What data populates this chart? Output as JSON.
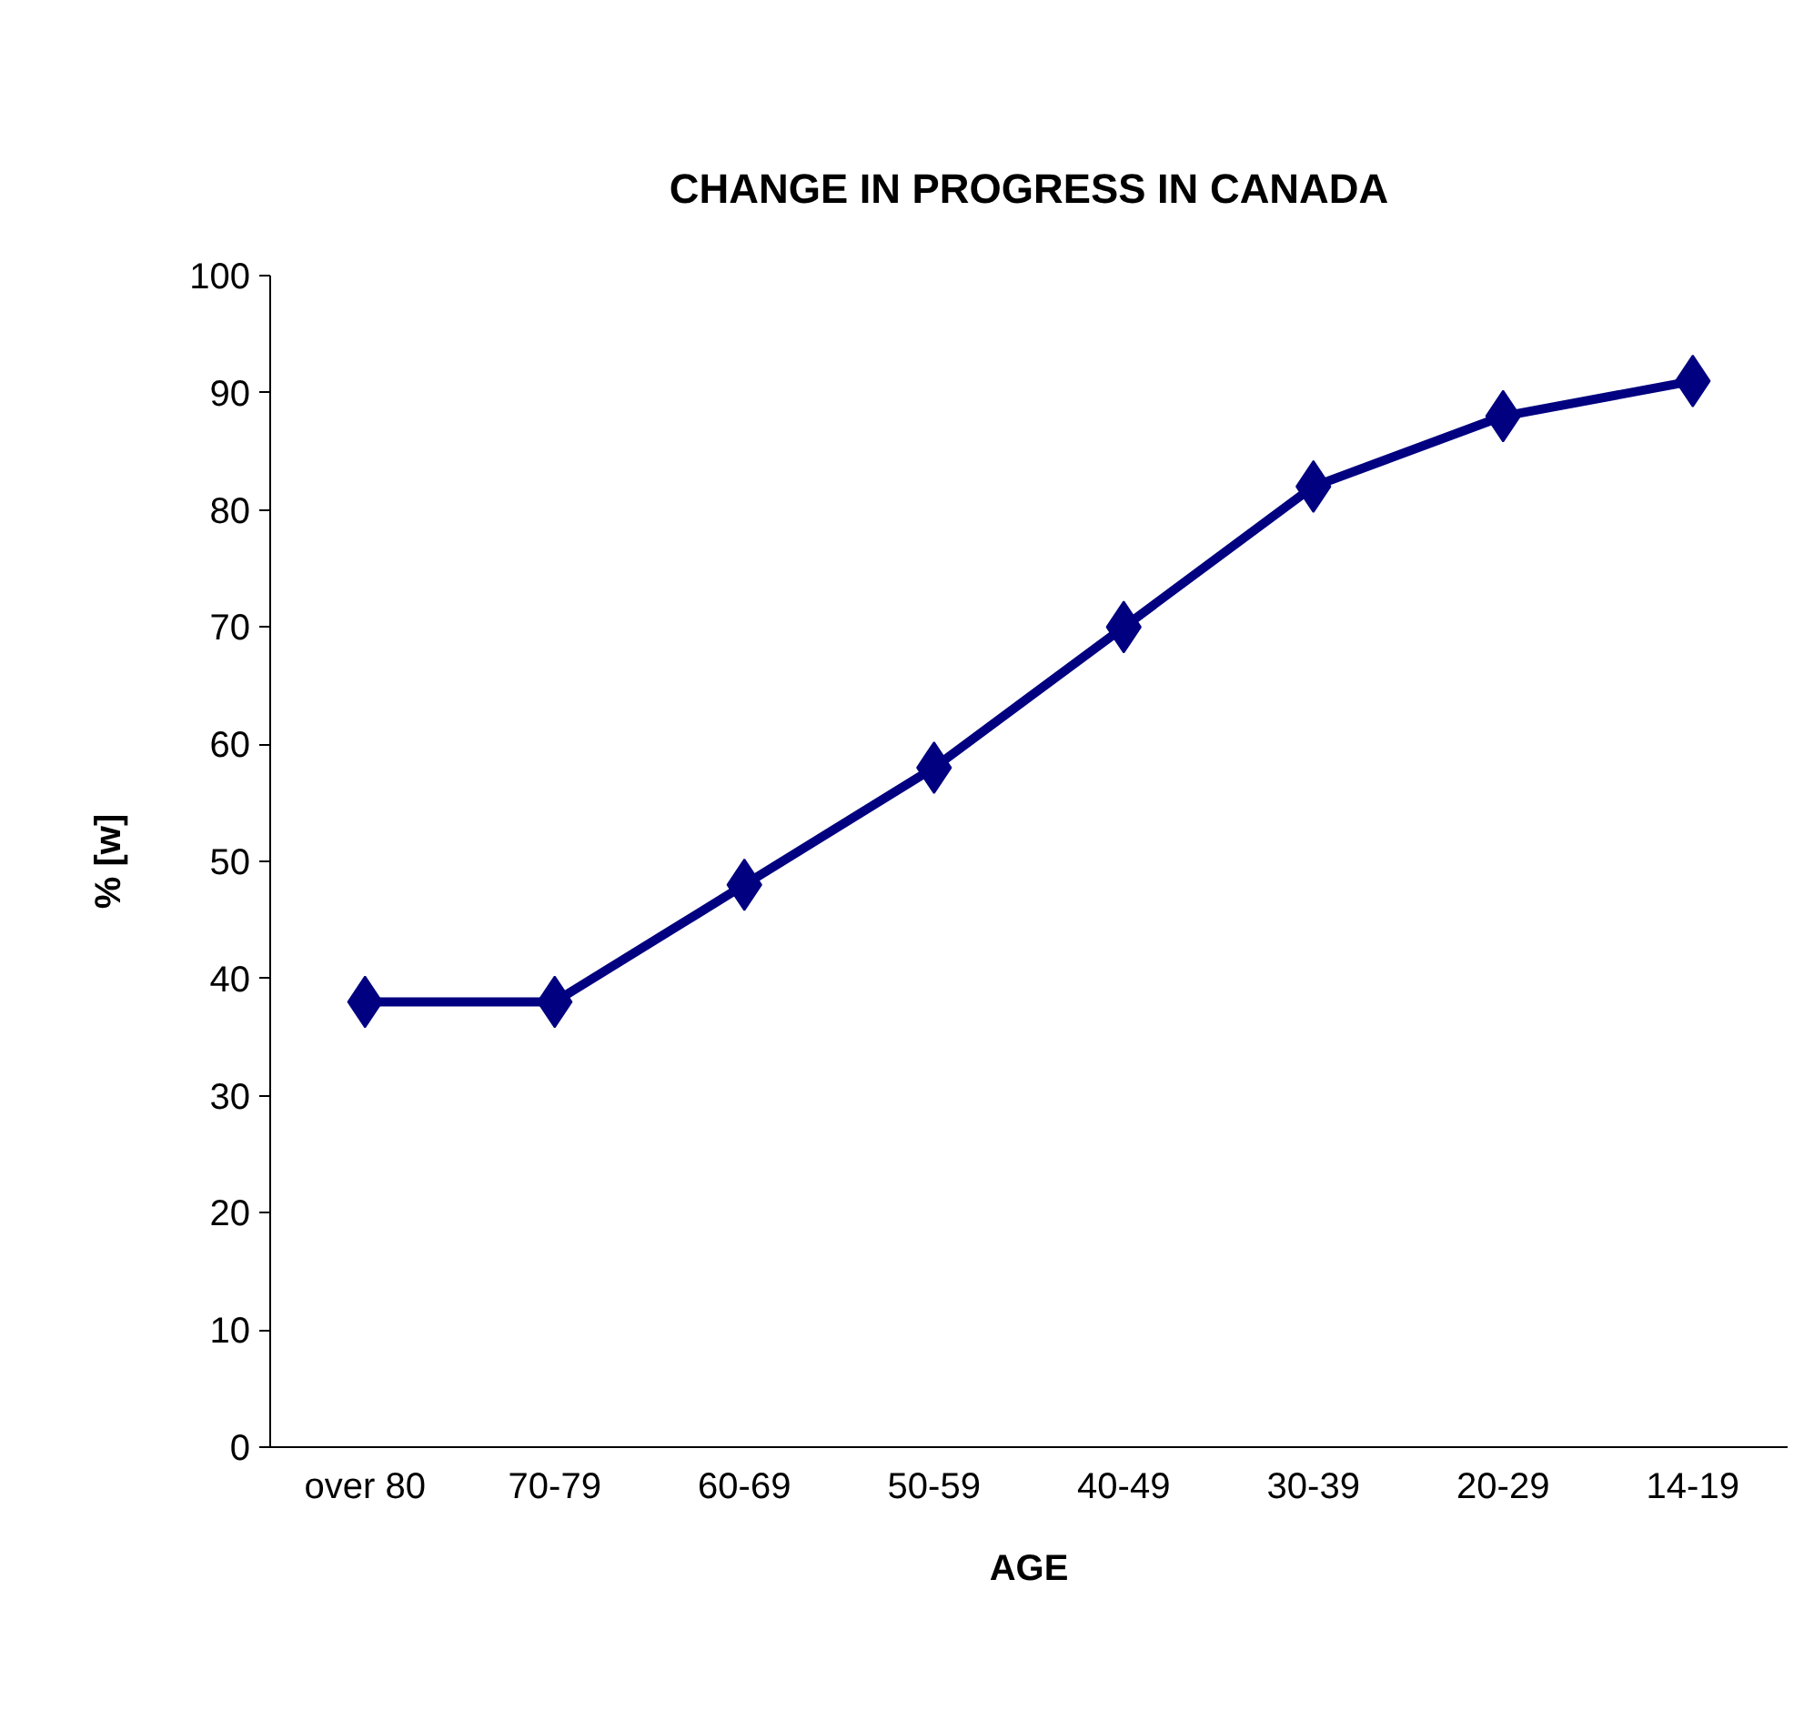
{
  "chart_data": {
    "type": "line",
    "title": "CHANGE IN PROGRESS IN CANADA",
    "xlabel": "AGE",
    "ylabel": "% [w]",
    "categories": [
      "over 80",
      "70-79",
      "60-69",
      "50-59",
      "40-49",
      "30-39",
      "20-29",
      "14-19"
    ],
    "series": [
      {
        "color": "#000080",
        "values": [
          38,
          38,
          48,
          58,
          70,
          82,
          88,
          91
        ]
      }
    ],
    "ylim": [
      0,
      100
    ],
    "yticks": [
      0,
      10,
      20,
      30,
      40,
      50,
      60,
      70,
      80,
      90,
      100
    ],
    "grid": false,
    "marker": "diamond",
    "line_style": "solid"
  }
}
